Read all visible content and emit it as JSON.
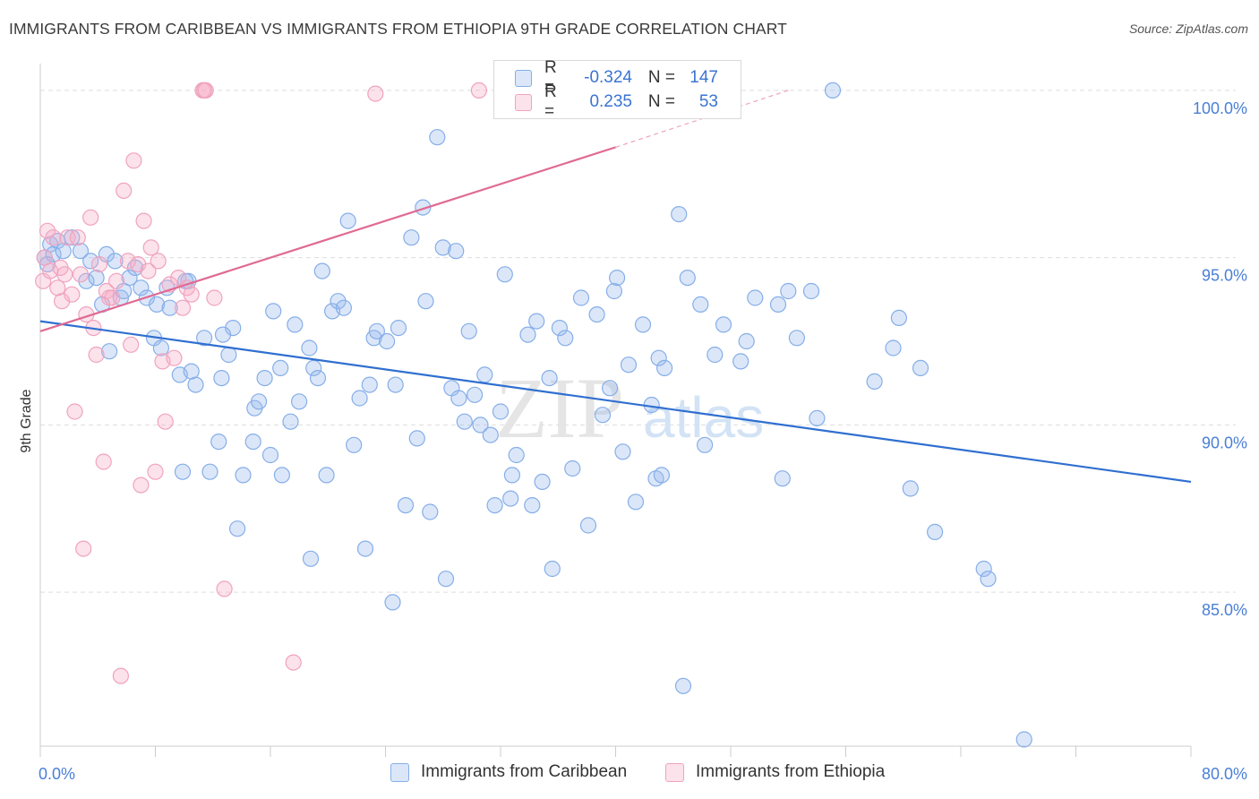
{
  "title": "IMMIGRANTS FROM CARIBBEAN VS IMMIGRANTS FROM ETHIOPIA 9TH GRADE CORRELATION CHART",
  "source": "Source: ZipAtlas.com",
  "watermark": {
    "zip": "ZIP",
    "atlas": "atlas"
  },
  "legend_top": [
    {
      "r_label": "R =",
      "r_value": "-0.324",
      "n_label": "N =",
      "n_value": "147",
      "color": "#8db5ec"
    },
    {
      "r_label": "R =",
      "r_value": "0.235",
      "n_label": "N =",
      "n_value": "53",
      "color": "#f3a6c1"
    }
  ],
  "legend_bottom": [
    {
      "label": "Immigrants from Caribbean",
      "color": "#8db5ec"
    },
    {
      "label": "Immigrants from Ethiopia",
      "color": "#f3a6c1"
    }
  ],
  "colors": {
    "blue_fill": "rgba(151,186,238,0.35)",
    "blue_stroke": "#86aee8",
    "blue_line": "#2f6fd0",
    "pink_fill": "rgba(245,173,199,0.35)",
    "pink_stroke": "#f0a3bf",
    "pink_line": "#e06a93",
    "grid": "#dddddd",
    "axis_text": "#4a7fd6"
  },
  "chart_data": {
    "type": "scatter",
    "title": "IMMIGRANTS FROM CARIBBEAN VS IMMIGRANTS FROM ETHIOPIA 9TH GRADE CORRELATION CHART",
    "xlabel": "",
    "ylabel": "9th Grade",
    "xlim": [
      0,
      80
    ],
    "ylim": [
      80.4,
      100.8
    ],
    "x_tick_labels": [
      {
        "value": 0,
        "label": "0.0%"
      },
      {
        "value": 80,
        "label": "80.0%"
      }
    ],
    "y_tick_labels": [
      {
        "value": 85,
        "label": "85.0%"
      },
      {
        "value": 90,
        "label": "90.0%"
      },
      {
        "value": 95,
        "label": "95.0%"
      },
      {
        "value": 100,
        "label": "100.0%"
      }
    ],
    "grid": true,
    "legend_position": "top-center",
    "series": [
      {
        "name": "Immigrants from Caribbean",
        "color": "#8db5ec",
        "trend": {
          "x": [
            0,
            80
          ],
          "y": [
            93.1,
            88.3
          ]
        },
        "points": [
          [
            0.3,
            95.0
          ],
          [
            0.5,
            94.8
          ],
          [
            0.7,
            95.4
          ],
          [
            0.9,
            95.1
          ],
          [
            1.2,
            95.5
          ],
          [
            1.6,
            95.2
          ],
          [
            2.2,
            95.6
          ],
          [
            2.8,
            95.2
          ],
          [
            3.2,
            94.3
          ],
          [
            3.5,
            94.9
          ],
          [
            3.9,
            94.4
          ],
          [
            4.3,
            93.6
          ],
          [
            4.6,
            95.1
          ],
          [
            4.8,
            92.2
          ],
          [
            5.2,
            94.9
          ],
          [
            5.6,
            93.8
          ],
          [
            5.8,
            94.0
          ],
          [
            6.2,
            94.4
          ],
          [
            6.6,
            94.7
          ],
          [
            7.0,
            94.1
          ],
          [
            7.4,
            93.8
          ],
          [
            7.9,
            92.6
          ],
          [
            8.1,
            93.6
          ],
          [
            8.4,
            92.3
          ],
          [
            8.8,
            94.1
          ],
          [
            9.0,
            93.5
          ],
          [
            9.7,
            91.5
          ],
          [
            9.9,
            88.6
          ],
          [
            10.3,
            94.3
          ],
          [
            10.8,
            91.2
          ],
          [
            10.1,
            94.3
          ],
          [
            10.5,
            91.6
          ],
          [
            11.4,
            92.6
          ],
          [
            11.8,
            88.6
          ],
          [
            12.6,
            91.4
          ],
          [
            12.4,
            89.5
          ],
          [
            13.1,
            92.1
          ],
          [
            13.4,
            92.9
          ],
          [
            13.7,
            86.9
          ],
          [
            14.1,
            88.5
          ],
          [
            14.8,
            89.5
          ],
          [
            14.9,
            90.5
          ],
          [
            15.2,
            90.7
          ],
          [
            15.6,
            91.4
          ],
          [
            16.0,
            89.1
          ],
          [
            16.2,
            93.4
          ],
          [
            16.7,
            91.7
          ],
          [
            16.8,
            88.5
          ],
          [
            17.4,
            90.1
          ],
          [
            17.7,
            93.0
          ],
          [
            18.0,
            90.7
          ],
          [
            18.7,
            92.3
          ],
          [
            18.8,
            86.0
          ],
          [
            19.0,
            91.7
          ],
          [
            19.3,
            91.4
          ],
          [
            19.6,
            94.6
          ],
          [
            19.9,
            88.5
          ],
          [
            20.3,
            93.4
          ],
          [
            20.7,
            93.7
          ],
          [
            21.1,
            93.5
          ],
          [
            21.4,
            96.1
          ],
          [
            21.8,
            89.4
          ],
          [
            22.2,
            90.8
          ],
          [
            22.6,
            86.3
          ],
          [
            22.9,
            91.2
          ],
          [
            23.2,
            92.6
          ],
          [
            23.4,
            92.8
          ],
          [
            24.1,
            92.5
          ],
          [
            24.5,
            84.7
          ],
          [
            24.7,
            91.2
          ],
          [
            24.9,
            92.9
          ],
          [
            25.4,
            87.6
          ],
          [
            25.8,
            95.6
          ],
          [
            26.2,
            89.6
          ],
          [
            26.6,
            96.5
          ],
          [
            26.8,
            93.7
          ],
          [
            27.1,
            87.4
          ],
          [
            27.6,
            98.6
          ],
          [
            28.0,
            95.3
          ],
          [
            28.2,
            85.4
          ],
          [
            28.6,
            91.1
          ],
          [
            28.9,
            95.2
          ],
          [
            29.1,
            90.8
          ],
          [
            29.5,
            90.1
          ],
          [
            29.8,
            92.8
          ],
          [
            30.2,
            90.9
          ],
          [
            30.6,
            90.0
          ],
          [
            30.9,
            91.5
          ],
          [
            31.3,
            89.7
          ],
          [
            31.6,
            87.6
          ],
          [
            32.0,
            90.4
          ],
          [
            32.3,
            94.5
          ],
          [
            32.7,
            87.8
          ],
          [
            32.8,
            88.5
          ],
          [
            33.1,
            89.1
          ],
          [
            33.9,
            92.7
          ],
          [
            34.2,
            87.6
          ],
          [
            34.5,
            93.1
          ],
          [
            34.9,
            88.3
          ],
          [
            35.4,
            91.4
          ],
          [
            35.6,
            85.7
          ],
          [
            36.1,
            92.9
          ],
          [
            36.5,
            92.6
          ],
          [
            37.0,
            88.7
          ],
          [
            37.6,
            93.8
          ],
          [
            38.1,
            87.0
          ],
          [
            38.7,
            93.3
          ],
          [
            39.1,
            90.3
          ],
          [
            39.6,
            91.1
          ],
          [
            39.9,
            94.0
          ],
          [
            40.1,
            94.4
          ],
          [
            40.5,
            89.2
          ],
          [
            40.9,
            91.8
          ],
          [
            41.4,
            87.7
          ],
          [
            41.9,
            93.0
          ],
          [
            42.8,
            88.4
          ],
          [
            43.0,
            92.0
          ],
          [
            43.4,
            91.7
          ],
          [
            43.2,
            88.5
          ],
          [
            44.4,
            96.3
          ],
          [
            44.7,
            82.2
          ],
          [
            45.0,
            94.4
          ],
          [
            45.9,
            93.6
          ],
          [
            46.2,
            89.4
          ],
          [
            46.9,
            92.1
          ],
          [
            47.5,
            93.0
          ],
          [
            48.7,
            91.9
          ],
          [
            49.1,
            92.5
          ],
          [
            49.7,
            93.8
          ],
          [
            51.3,
            93.6
          ],
          [
            51.6,
            88.4
          ],
          [
            52.0,
            94.0
          ],
          [
            52.6,
            92.6
          ],
          [
            53.6,
            94.0
          ],
          [
            54.0,
            90.2
          ],
          [
            55.1,
            100.0
          ],
          [
            58.0,
            91.3
          ],
          [
            59.3,
            92.3
          ],
          [
            59.7,
            93.2
          ],
          [
            60.5,
            88.1
          ],
          [
            61.2,
            91.7
          ],
          [
            62.2,
            86.8
          ],
          [
            65.6,
            85.7
          ],
          [
            65.9,
            85.4
          ],
          [
            68.4,
            80.6
          ],
          [
            42.5,
            90.6
          ],
          [
            12.7,
            92.7
          ]
        ]
      },
      {
        "name": "Immigrants from Ethiopia",
        "color": "#f3a6c1",
        "trend": {
          "x": [
            0,
            40
          ],
          "y": [
            92.8,
            98.3
          ],
          "dash_to": [
            52,
            100.0
          ]
        },
        "points": [
          [
            0.2,
            94.3
          ],
          [
            0.3,
            95.0
          ],
          [
            0.5,
            95.8
          ],
          [
            0.7,
            94.6
          ],
          [
            0.9,
            95.6
          ],
          [
            1.2,
            94.1
          ],
          [
            1.4,
            94.7
          ],
          [
            1.5,
            93.7
          ],
          [
            1.7,
            94.5
          ],
          [
            1.9,
            95.6
          ],
          [
            2.2,
            93.9
          ],
          [
            2.4,
            90.4
          ],
          [
            2.6,
            95.6
          ],
          [
            2.8,
            94.5
          ],
          [
            3.0,
            86.3
          ],
          [
            3.2,
            93.3
          ],
          [
            3.5,
            96.2
          ],
          [
            3.7,
            92.9
          ],
          [
            3.9,
            92.1
          ],
          [
            4.1,
            94.8
          ],
          [
            4.4,
            88.9
          ],
          [
            4.6,
            94.0
          ],
          [
            4.8,
            93.8
          ],
          [
            5.0,
            93.8
          ],
          [
            5.3,
            94.3
          ],
          [
            5.6,
            82.5
          ],
          [
            5.8,
            97.0
          ],
          [
            6.1,
            94.9
          ],
          [
            6.3,
            92.4
          ],
          [
            6.5,
            97.9
          ],
          [
            6.8,
            94.8
          ],
          [
            7.0,
            88.2
          ],
          [
            7.2,
            96.1
          ],
          [
            7.5,
            94.6
          ],
          [
            7.7,
            95.3
          ],
          [
            8.0,
            88.6
          ],
          [
            8.2,
            94.9
          ],
          [
            8.5,
            91.9
          ],
          [
            8.7,
            90.1
          ],
          [
            9.0,
            94.2
          ],
          [
            9.3,
            92.0
          ],
          [
            9.6,
            94.4
          ],
          [
            9.9,
            93.5
          ],
          [
            10.2,
            94.1
          ],
          [
            10.5,
            93.9
          ],
          [
            11.3,
            100.0
          ],
          [
            11.4,
            100.0
          ],
          [
            11.5,
            100.0
          ],
          [
            12.1,
            93.8
          ],
          [
            12.8,
            85.1
          ],
          [
            17.6,
            82.9
          ],
          [
            23.3,
            99.9
          ],
          [
            30.5,
            100.0
          ]
        ]
      }
    ]
  }
}
